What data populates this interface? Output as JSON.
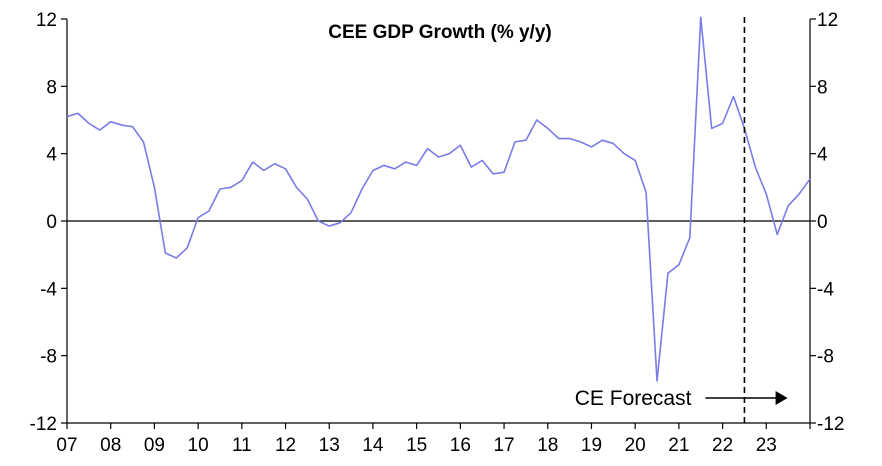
{
  "chart_data": {
    "type": "line",
    "title": "CEE GDP Growth (%  y/y)",
    "xlabel": "",
    "ylabel": "",
    "ylim": [
      -12,
      12
    ],
    "yticks": [
      "-12",
      "-8",
      "-4",
      "0",
      "4",
      "8",
      "12"
    ],
    "right_yticks": [
      "-12",
      "-8",
      "-4",
      "0",
      "4",
      "8",
      "12"
    ],
    "x_tick_labels": [
      "07",
      "08",
      "09",
      "10",
      "11",
      "12",
      "13",
      "14",
      "15",
      "16",
      "17",
      "18",
      "19",
      "20",
      "21",
      "22",
      "23"
    ],
    "xlim": [
      2007.0,
      2024.0
    ],
    "grid": false,
    "line_color": "#7b7be8",
    "forecast_marker": {
      "x": 2022.5,
      "label": "CE Forecast"
    },
    "series": [
      {
        "x": [
          2007.0,
          2007.25,
          2007.5,
          2007.75,
          2008.0,
          2008.25,
          2008.5,
          2008.75,
          2009.0,
          2009.25,
          2009.5,
          2009.75,
          2010.0,
          2010.25,
          2010.5,
          2010.75,
          2011.0,
          2011.25,
          2011.5,
          2011.75,
          2012.0,
          2012.25,
          2012.5,
          2012.75,
          2013.0,
          2013.25,
          2013.5,
          2013.75,
          2014.0,
          2014.25,
          2014.5,
          2014.75,
          2015.0,
          2015.25,
          2015.5,
          2015.75,
          2016.0,
          2016.25,
          2016.5,
          2016.75,
          2017.0,
          2017.25,
          2017.5,
          2017.75,
          2018.0,
          2018.25,
          2018.5,
          2018.75,
          2019.0,
          2019.25,
          2019.5,
          2019.75,
          2020.0,
          2020.25,
          2020.5,
          2020.75,
          2021.0,
          2021.25,
          2021.5,
          2021.75,
          2022.0,
          2022.25,
          2022.5,
          2022.75,
          2023.0,
          2023.25,
          2023.5,
          2023.75,
          2024.0
        ],
        "values": [
          6.2,
          6.4,
          5.8,
          5.4,
          5.9,
          5.7,
          5.6,
          4.7,
          2.0,
          -1.9,
          -2.2,
          -1.6,
          0.2,
          0.6,
          1.9,
          2.0,
          2.4,
          3.5,
          3.0,
          3.4,
          3.1,
          2.0,
          1.3,
          0.0,
          -0.3,
          -0.1,
          0.5,
          1.9,
          3.0,
          3.3,
          3.1,
          3.5,
          3.3,
          4.3,
          3.8,
          4.0,
          4.5,
          3.2,
          3.6,
          2.8,
          2.9,
          4.7,
          4.8,
          6.0,
          5.5,
          4.9,
          4.9,
          4.7,
          4.4,
          4.8,
          4.6,
          4.0,
          3.6,
          1.7,
          -9.5,
          -3.1,
          -2.6,
          -1.0,
          12.1,
          5.5,
          5.8,
          7.4,
          5.5,
          3.2,
          1.6,
          -0.8,
          0.9,
          1.6,
          2.5
        ]
      }
    ]
  }
}
